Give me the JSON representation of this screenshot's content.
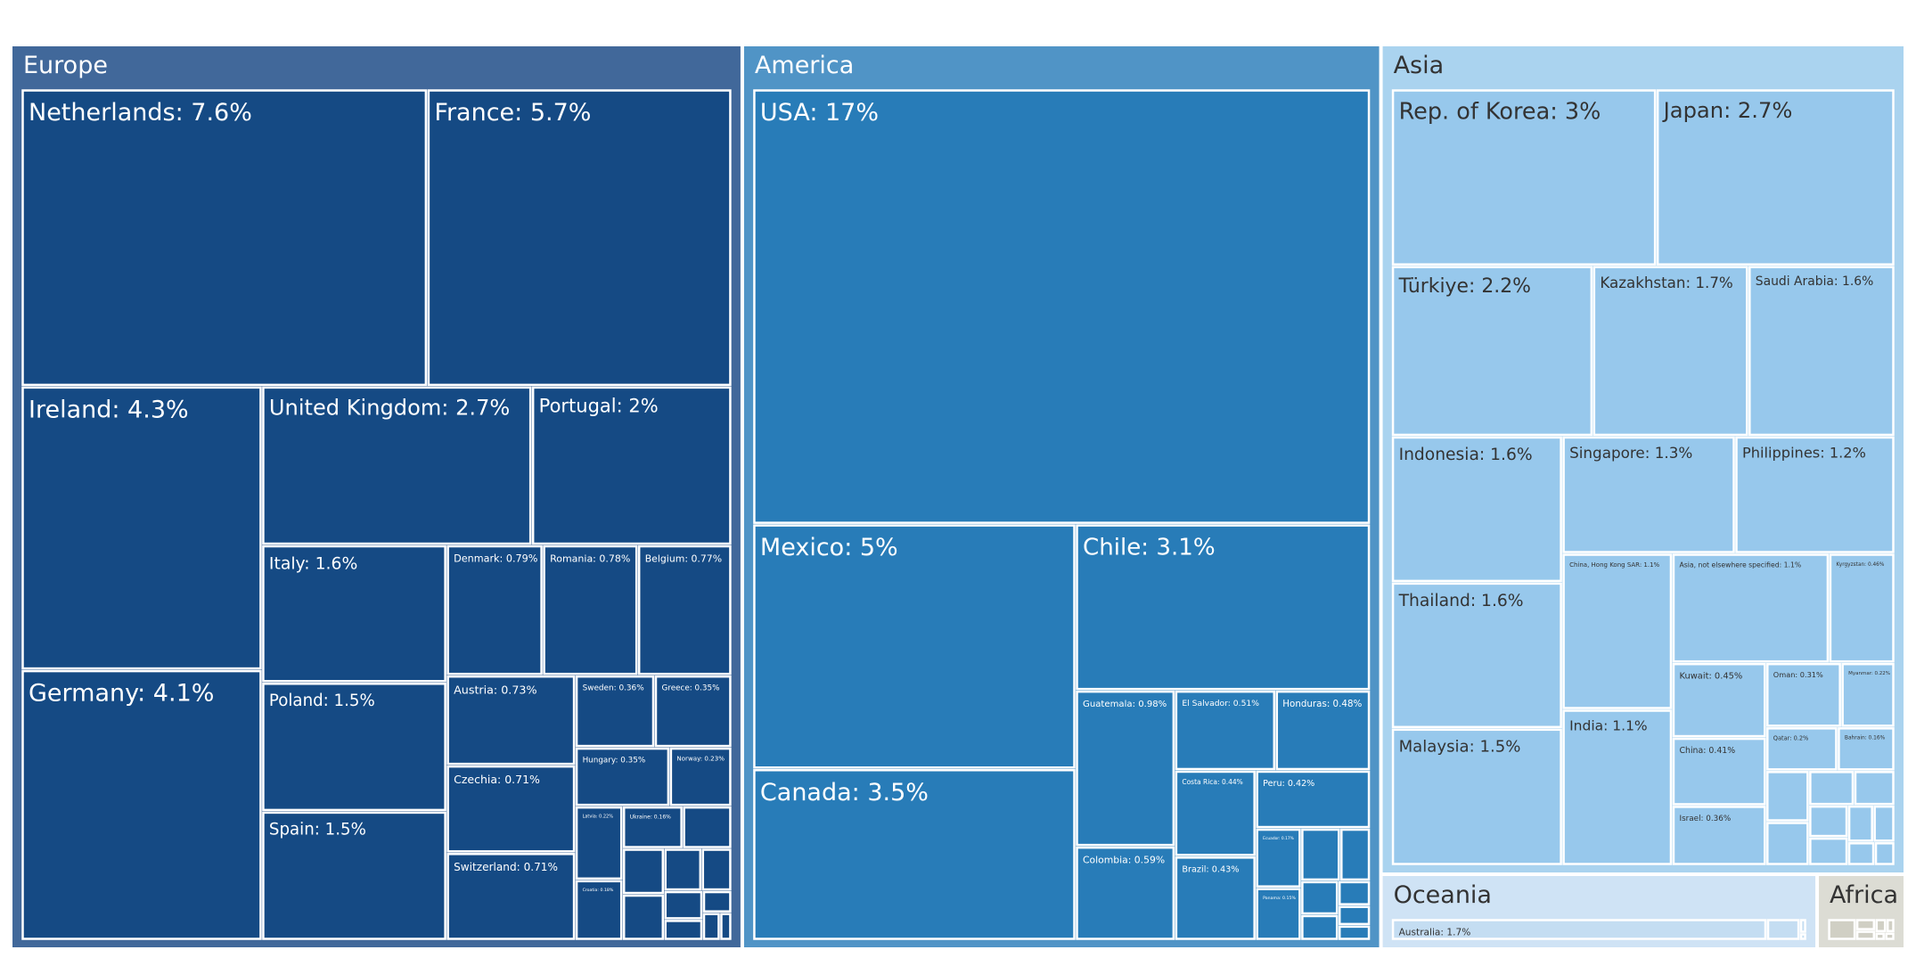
{
  "chart_data": {
    "type": "treemap",
    "value_unit": "%",
    "regions": [
      {
        "name": "Europe",
        "color": "#41689a",
        "tile_color": "#154a84",
        "text_color": "#ffffff",
        "children": [
          {
            "name": "Netherlands",
            "label": "Netherlands: 7.6%",
            "value": 7.6
          },
          {
            "name": "France",
            "label": "France: 5.7%",
            "value": 5.7
          },
          {
            "name": "Ireland",
            "label": "Ireland: 4.3%",
            "value": 4.3
          },
          {
            "name": "United Kingdom",
            "label": "United Kingdom: 2.7%",
            "value": 2.7
          },
          {
            "name": "Portugal",
            "label": "Portugal: 2%",
            "value": 2.0
          },
          {
            "name": "Germany",
            "label": "Germany: 4.1%",
            "value": 4.1
          },
          {
            "name": "Italy",
            "label": "Italy: 1.6%",
            "value": 1.6
          },
          {
            "name": "Poland",
            "label": "Poland: 1.5%",
            "value": 1.5
          },
          {
            "name": "Spain",
            "label": "Spain: 1.5%",
            "value": 1.5
          },
          {
            "name": "Denmark",
            "label": "Denmark: 0.79%",
            "value": 0.79
          },
          {
            "name": "Romania",
            "label": "Romania: 0.78%",
            "value": 0.78
          },
          {
            "name": "Belgium",
            "label": "Belgium: 0.77%",
            "value": 0.77
          },
          {
            "name": "Austria",
            "label": "Austria: 0.73%",
            "value": 0.73
          },
          {
            "name": "Czechia",
            "label": "Czechia: 0.71%",
            "value": 0.71
          },
          {
            "name": "Switzerland",
            "label": "Switzerland: 0.71%",
            "value": 0.71
          },
          {
            "name": "Sweden",
            "label": "Sweden: 0.36%",
            "value": 0.36
          },
          {
            "name": "Greece",
            "label": "Greece: 0.35%",
            "value": 0.35
          },
          {
            "name": "Hungary",
            "label": "Hungary: 0.35%",
            "value": 0.35
          },
          {
            "name": "Norway",
            "label": "Norway: 0.23%",
            "value": 0.23
          },
          {
            "name": "Latvia",
            "label": "Latvia: 0.22%",
            "value": 0.22
          },
          {
            "name": "Croatia",
            "label": "Croatia: 0.18%",
            "value": 0.18
          },
          {
            "name": "Ukraine",
            "label": "Ukraine: 0.16%",
            "value": 0.16
          },
          {
            "name": "",
            "label": "",
            "value": 0.13
          },
          {
            "name": "",
            "label": "",
            "value": 0.12
          },
          {
            "name": "",
            "label": "",
            "value": 0.12
          },
          {
            "name": "",
            "label": "",
            "value": 0.1
          },
          {
            "name": "",
            "label": "",
            "value": 0.08
          },
          {
            "name": "",
            "label": "",
            "value": 0.07
          },
          {
            "name": "",
            "label": "",
            "value": 0.05
          },
          {
            "name": "",
            "label": "",
            "value": 0.04
          },
          {
            "name": "",
            "label": "",
            "value": 0.03
          },
          {
            "name": "",
            "label": "",
            "value": 0.02
          }
        ]
      },
      {
        "name": "America",
        "color": "#5094c6",
        "tile_color": "#287cb8",
        "text_color": "#ffffff",
        "children": [
          {
            "name": "USA",
            "label": "USA: 17%",
            "value": 17
          },
          {
            "name": "Mexico",
            "label": "Mexico: 5%",
            "value": 5
          },
          {
            "name": "Chile",
            "label": "Chile: 3.1%",
            "value": 3.1
          },
          {
            "name": "Canada",
            "label": "Canada: 3.5%",
            "value": 3.5
          },
          {
            "name": "Guatemala",
            "label": "Guatemala: 0.98%",
            "value": 0.98
          },
          {
            "name": "El Salvador",
            "label": "El Salvador: 0.51%",
            "value": 0.51
          },
          {
            "name": "Honduras",
            "label": "Honduras: 0.48%",
            "value": 0.48
          },
          {
            "name": "Costa Rica",
            "label": "Costa Rica: 0.44%",
            "value": 0.44
          },
          {
            "name": "Peru",
            "label": "Peru: 0.42%",
            "value": 0.42
          },
          {
            "name": "Colombia",
            "label": "Colombia: 0.59%",
            "value": 0.59
          },
          {
            "name": "Brazil",
            "label": "Brazil: 0.43%",
            "value": 0.43
          },
          {
            "name": "Panama",
            "label": "Panama: 0.15%",
            "value": 0.15
          },
          {
            "name": "Ecuador",
            "label": "Ecuador: 0.17%",
            "value": 0.17
          },
          {
            "name": "",
            "label": "",
            "value": 0.13
          },
          {
            "name": "",
            "label": "",
            "value": 0.1
          },
          {
            "name": "",
            "label": "",
            "value": 0.08
          },
          {
            "name": "",
            "label": "",
            "value": 0.06
          },
          {
            "name": "",
            "label": "",
            "value": 0.05
          },
          {
            "name": "",
            "label": "",
            "value": 0.04
          },
          {
            "name": "",
            "label": "",
            "value": 0.03
          }
        ]
      },
      {
        "name": "Asia",
        "color": "#aad3ef",
        "tile_color": "#97c8ec",
        "text_color": "#333333",
        "children": [
          {
            "name": "Rep. of Korea",
            "label": "Rep. of Korea: 3%",
            "value": 3.0
          },
          {
            "name": "Japan",
            "label": "Japan: 2.7%",
            "value": 2.7
          },
          {
            "name": "Türkiye",
            "label": "Türkiye: 2.2%",
            "value": 2.2
          },
          {
            "name": "Kazakhstan",
            "label": "Kazakhstan: 1.7%",
            "value": 1.7
          },
          {
            "name": "Saudi Arabia",
            "label": "Saudi Arabia: 1.6%",
            "value": 1.6
          },
          {
            "name": "Indonesia",
            "label": "Indonesia: 1.6%",
            "value": 1.6
          },
          {
            "name": "Singapore",
            "label": "Singapore: 1.3%",
            "value": 1.3
          },
          {
            "name": "Philippines",
            "label": "Philippines: 1.2%",
            "value": 1.2
          },
          {
            "name": "Thailand",
            "label": "Thailand: 1.6%",
            "value": 1.6
          },
          {
            "name": "China, Hong Kong SAR",
            "label": "China, Hong Kong SAR: 1.1%",
            "value": 1.1
          },
          {
            "name": "India",
            "label": "India: 1.1%",
            "value": 1.1
          },
          {
            "name": "Kyrgyzstan",
            "label": "Kyrgyzstan: 0.46%",
            "value": 0.46
          },
          {
            "name": "Malaysia",
            "label": "Malaysia: 1.5%",
            "value": 1.5
          },
          {
            "name": "Asia, not elsewhere specified",
            "label": "Asia, not elsewhere specified: 1.1%",
            "value": 1.1
          },
          {
            "name": "Kuwait",
            "label": "Kuwait: 0.45%",
            "value": 0.45
          },
          {
            "name": "Oman",
            "label": "Oman: 0.31%",
            "value": 0.31
          },
          {
            "name": "Myanmar",
            "label": "Myanmar: 0.22%",
            "value": 0.22
          },
          {
            "name": "China",
            "label": "China: 0.41%",
            "value": 0.41
          },
          {
            "name": "Qatar",
            "label": "Qatar: 0.2%",
            "value": 0.2
          },
          {
            "name": "Bahrain",
            "label": "Bahrain: 0.16%",
            "value": 0.16
          },
          {
            "name": "Israel",
            "label": "Israel: 0.36%",
            "value": 0.36
          },
          {
            "name": "",
            "label": "",
            "value": 0.14
          },
          {
            "name": "",
            "label": "",
            "value": 0.12
          },
          {
            "name": "",
            "label": "",
            "value": 0.1
          },
          {
            "name": "",
            "label": "",
            "value": 0.09
          },
          {
            "name": "",
            "label": "",
            "value": 0.08
          },
          {
            "name": "",
            "label": "",
            "value": 0.07
          },
          {
            "name": "",
            "label": "",
            "value": 0.06
          },
          {
            "name": "",
            "label": "",
            "value": 0.05
          },
          {
            "name": "",
            "label": "",
            "value": 0.04
          },
          {
            "name": "",
            "label": "",
            "value": 0.03
          }
        ]
      },
      {
        "name": "Oceania",
        "color": "#cfe3f5",
        "tile_color": "#c4ddf2",
        "text_color": "#333333",
        "children": [
          {
            "name": "Australia",
            "label": "Australia: 1.7%",
            "value": 1.7
          },
          {
            "name": "",
            "label": "",
            "value": 0.15
          },
          {
            "name": "",
            "label": "",
            "value": 0.02
          },
          {
            "name": "",
            "label": "",
            "value": 0.01
          }
        ]
      },
      {
        "name": "Africa",
        "color": "#dcdcd4",
        "tile_color": "#d0cfc4",
        "text_color": "#333333",
        "children": [
          {
            "name": "",
            "label": "",
            "value": 0.16
          },
          {
            "name": "",
            "label": "",
            "value": 0.06
          },
          {
            "name": "",
            "label": "",
            "value": 0.05
          },
          {
            "name": "",
            "label": "",
            "value": 0.04
          },
          {
            "name": "",
            "label": "",
            "value": 0.03
          },
          {
            "name": "",
            "label": "",
            "value": 0.02
          },
          {
            "name": "",
            "label": "",
            "value": 0.02
          }
        ]
      }
    ]
  }
}
